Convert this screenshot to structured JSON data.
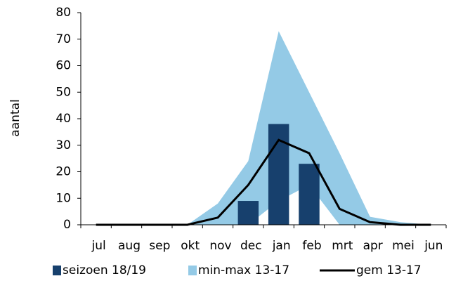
{
  "chart_data": {
    "type": "combo",
    "y_label": "aantal",
    "categories": [
      "jul",
      "aug",
      "sep",
      "okt",
      "nov",
      "dec",
      "jan",
      "feb",
      "mrt",
      "apr",
      "mei",
      "jun"
    ],
    "series": [
      {
        "name": "seizoen 18/19",
        "type": "bar",
        "color": "#17406d",
        "values": [
          null,
          null,
          null,
          null,
          null,
          9,
          38,
          23,
          null,
          null,
          null,
          null
        ]
      },
      {
        "name": "min-max 13-17",
        "type": "band",
        "color": "#94cae6",
        "low": [
          0,
          0,
          0,
          0,
          0,
          0,
          9,
          15,
          0,
          0,
          0,
          0
        ],
        "high": [
          0,
          0,
          0,
          0,
          8,
          24,
          73,
          50,
          27,
          3,
          1,
          0
        ]
      },
      {
        "name": "gem 13-17",
        "type": "line",
        "color": "#000000",
        "values": [
          0,
          0,
          0,
          0,
          2.7,
          15,
          32,
          27,
          6,
          1,
          0,
          0
        ]
      }
    ],
    "ylim": [
      0,
      80
    ],
    "yticks": [
      0,
      10,
      20,
      30,
      40,
      50,
      60,
      70,
      80
    ],
    "legend": "bottom"
  }
}
